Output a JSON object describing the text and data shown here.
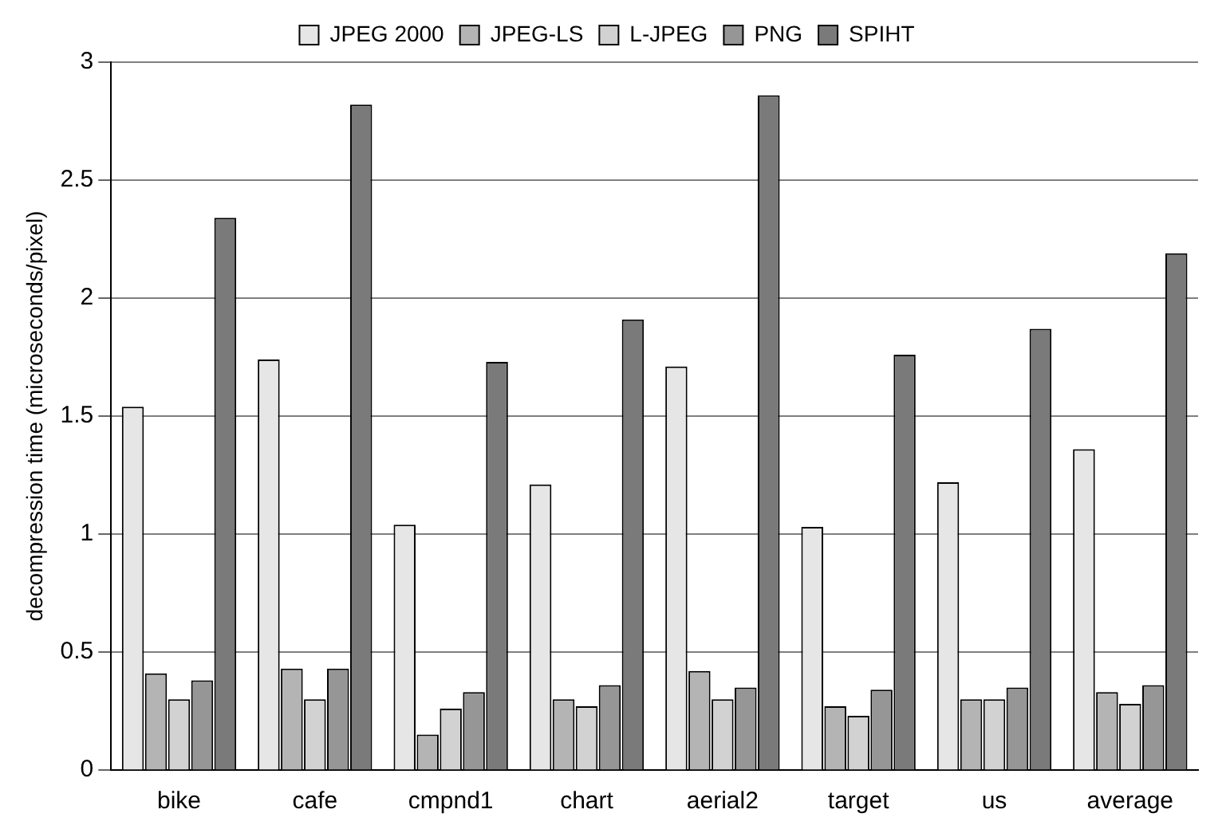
{
  "chart_data": {
    "type": "bar",
    "ylabel": "decompression time (microseconds/pixel)",
    "categories": [
      "bike",
      "cafe",
      "cmpnd1",
      "chart",
      "aerial2",
      "target",
      "us",
      "average"
    ],
    "series": [
      {
        "name": "JPEG 2000",
        "color": "#e6e6e6",
        "values": [
          1.54,
          1.74,
          1.04,
          1.21,
          1.71,
          1.03,
          1.22,
          1.36
        ]
      },
      {
        "name": "JPEG-LS",
        "color": "#b4b4b4",
        "values": [
          0.41,
          0.43,
          0.15,
          0.3,
          0.42,
          0.27,
          0.3,
          0.33
        ]
      },
      {
        "name": "L-JPEG",
        "color": "#d2d2d2",
        "values": [
          0.3,
          0.3,
          0.26,
          0.27,
          0.3,
          0.23,
          0.3,
          0.28
        ]
      },
      {
        "name": "PNG",
        "color": "#969696",
        "values": [
          0.38,
          0.43,
          0.33,
          0.36,
          0.35,
          0.34,
          0.35,
          0.36
        ]
      },
      {
        "name": "SPIHT",
        "color": "#7a7a7a",
        "values": [
          2.34,
          2.82,
          1.73,
          1.91,
          2.86,
          1.76,
          1.87,
          2.19
        ]
      }
    ],
    "ylim": [
      0,
      3
    ],
    "yticks": [
      0,
      0.5,
      1,
      1.5,
      2,
      2.5,
      3
    ],
    "grid": "y",
    "legend": "top"
  }
}
